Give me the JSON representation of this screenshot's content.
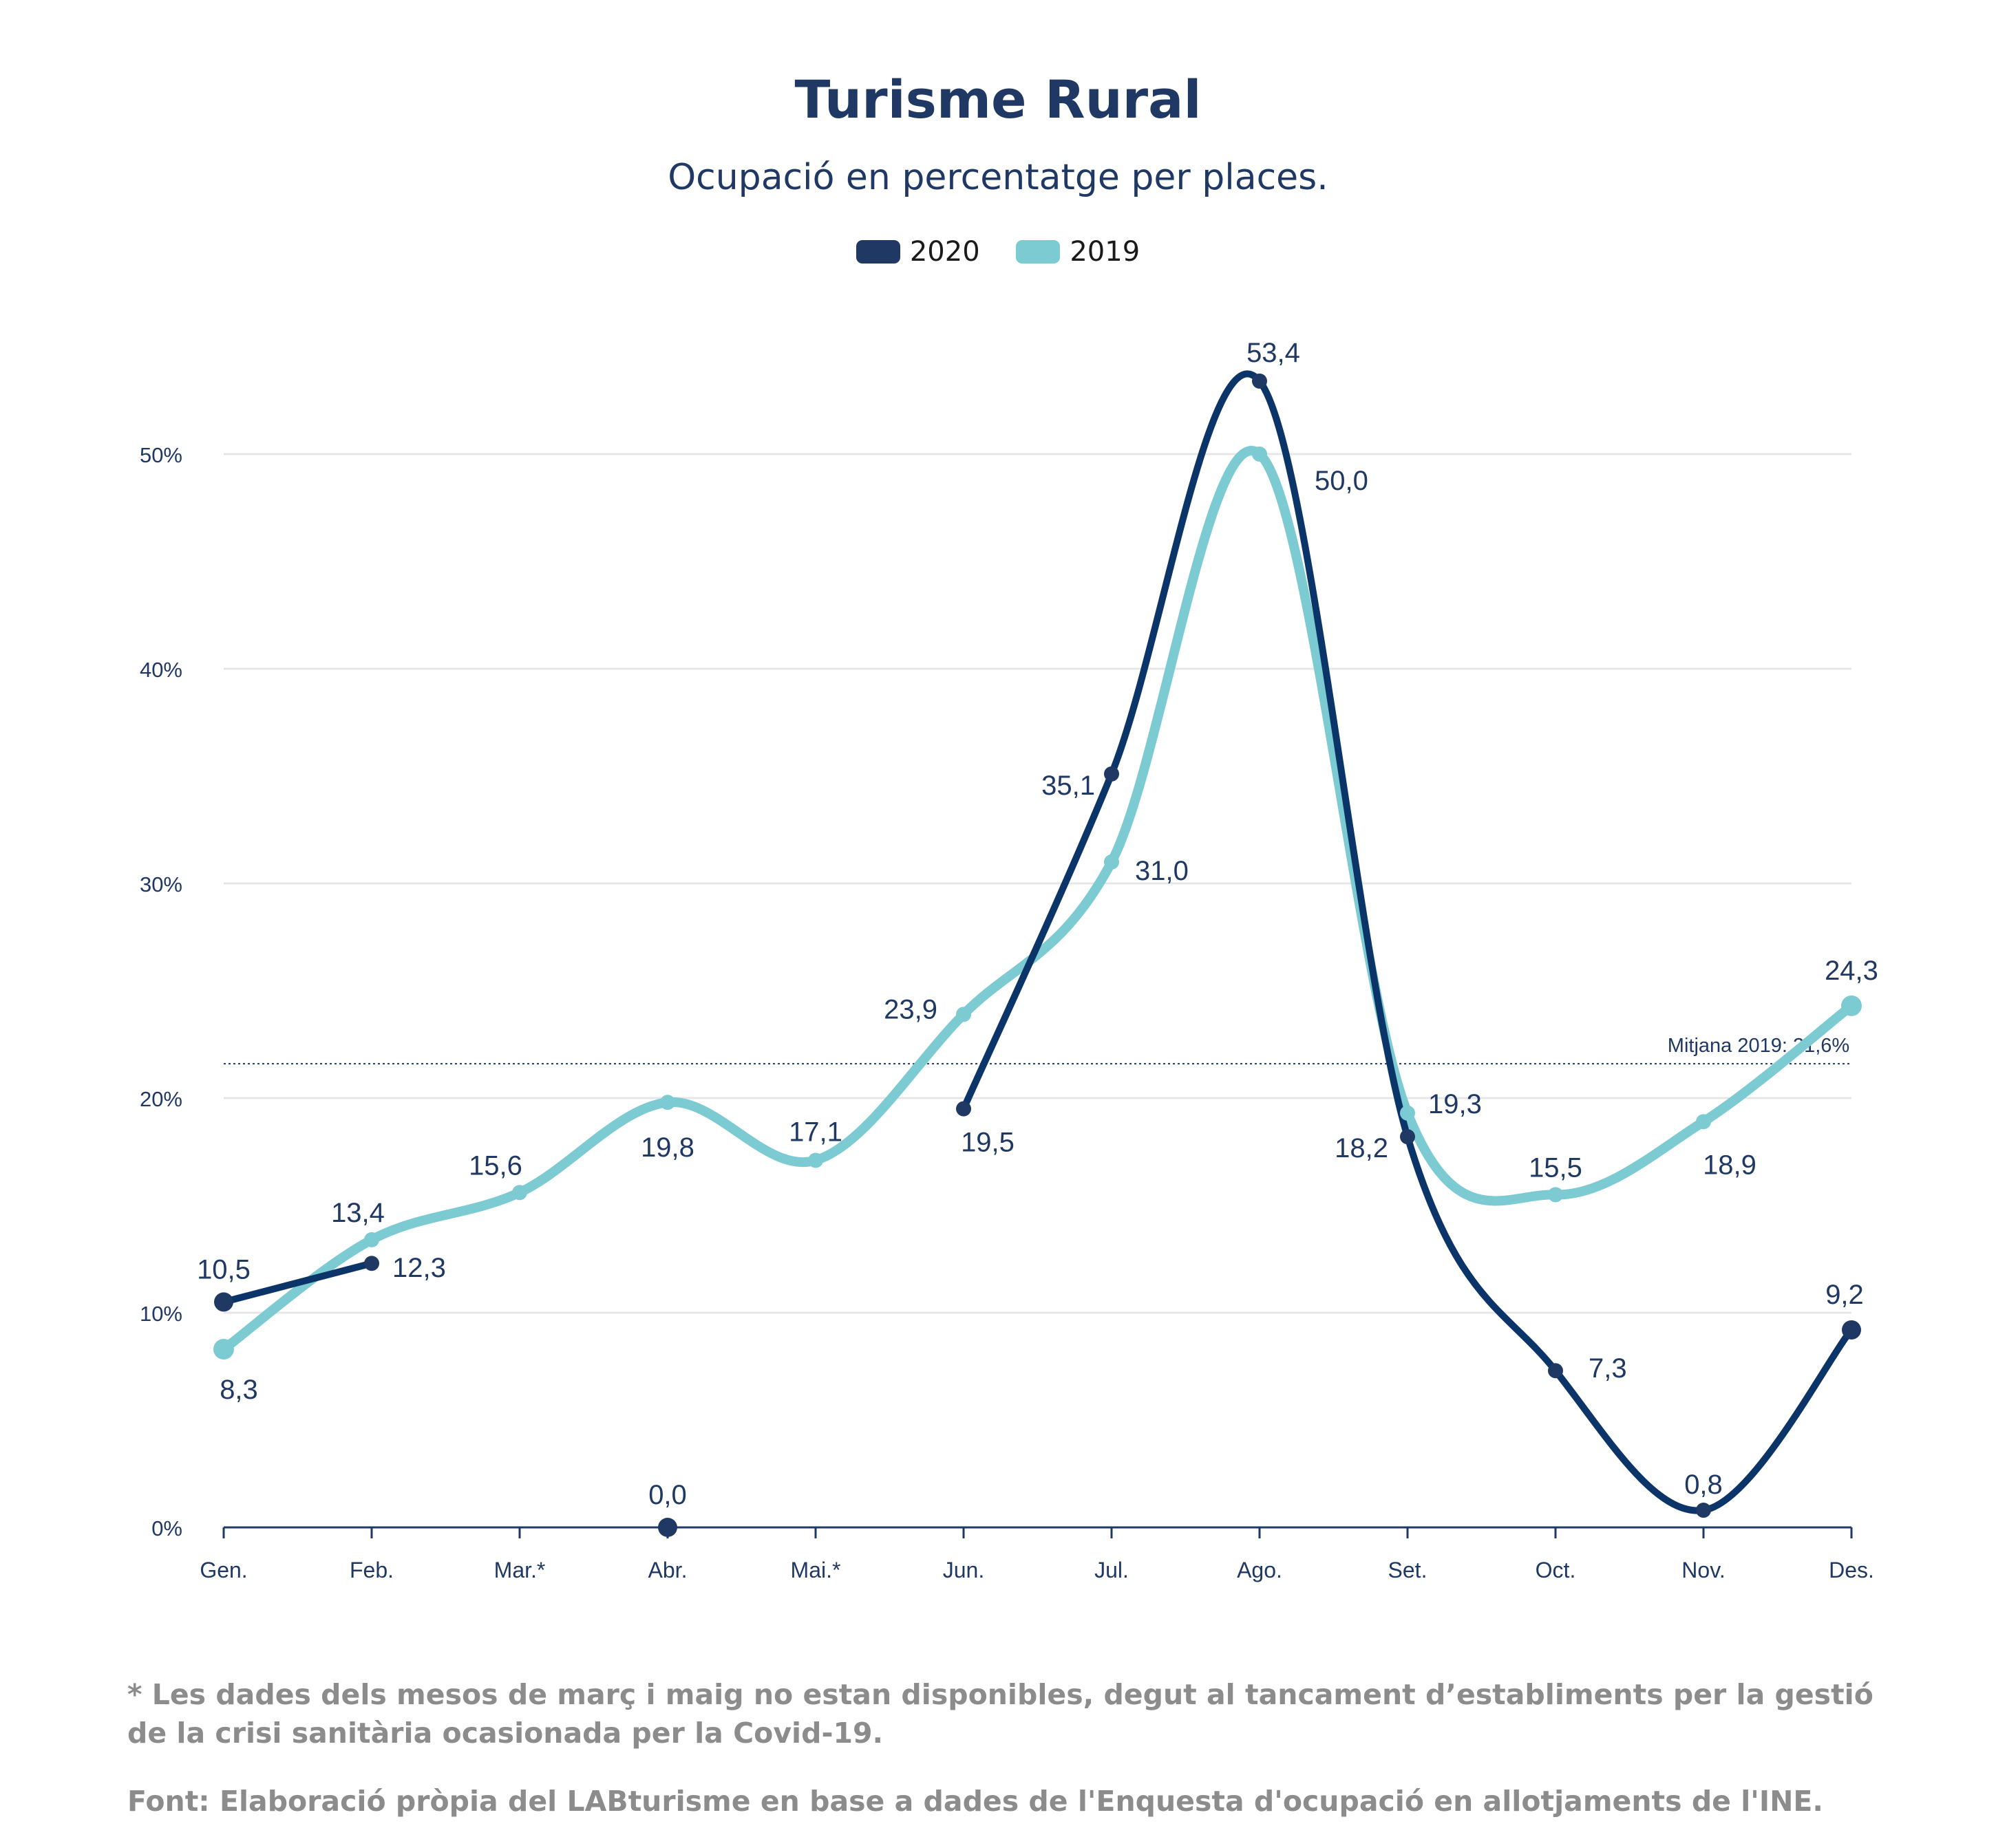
{
  "chart_data": {
    "type": "line",
    "title": "Turisme Rural",
    "subtitle": "Ocupació en percentatge per places.",
    "categories": [
      "Gen.",
      "Feb.",
      "Mar.*",
      "Abr.",
      "Mai.*",
      "Jun.",
      "Jul.",
      "Ago.",
      "Set.",
      "Oct.",
      "Nov.",
      "Des."
    ],
    "ylim": [
      0,
      55
    ],
    "yticks": [
      "0%",
      "10%",
      "20%",
      "30%",
      "40%",
      "50%"
    ],
    "grid": true,
    "legend_placement": "top-center",
    "series": [
      {
        "name": "2020",
        "color": "#1f3864",
        "line_color": "#0b3469",
        "values": [
          10.5,
          12.3,
          null,
          0.0,
          null,
          19.5,
          35.1,
          53.4,
          18.2,
          7.3,
          0.8,
          9.2
        ],
        "labels": [
          "10,5",
          "12,3",
          "",
          "0,0",
          "",
          "19,5",
          "35,1",
          "53,4",
          "18,2",
          "7,3",
          "0,8",
          "9,2"
        ]
      },
      {
        "name": "2019",
        "color": "#7ccad2",
        "line_color": "#7ccad2",
        "values": [
          8.3,
          13.4,
          15.6,
          19.8,
          17.1,
          23.9,
          31.0,
          50.0,
          19.3,
          15.5,
          18.9,
          24.3
        ],
        "labels": [
          "8,3",
          "13,4",
          "15,6",
          "19,8",
          "17,1",
          "23,9",
          "31,0",
          "50,0",
          "19,3",
          "15,5",
          "18,9",
          "24,3"
        ]
      }
    ],
    "reference_line": {
      "value": 21.6,
      "label": "Mitjana 2019: 21,6%"
    }
  },
  "footnote": "* Les dades dels mesos de març i maig no estan disponibles, degut al tancament d’establiments per la gestió de la crisi sanitària ocasionada per la Covid-19.",
  "source": "Font: Elaboració pròpia del LABturisme en base a dades de l'Enquesta d'ocupació en allotjaments de l'INE."
}
